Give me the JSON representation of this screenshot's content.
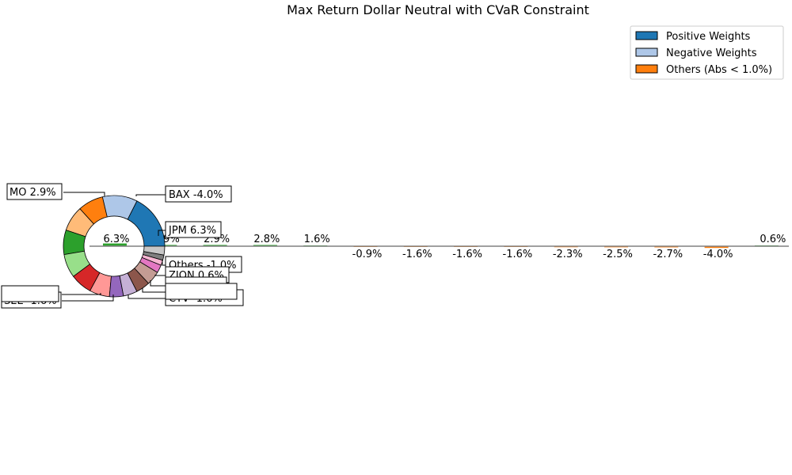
{
  "chart_data": {
    "type": "pie",
    "title": "Max Return Dollar Neutral with CVaR Constraint",
    "legend": {
      "placement": "top-right",
      "entries": [
        {
          "label": "Positive Weights",
          "color": "#1f77b4"
        },
        {
          "label": "Negative Weights",
          "color": "#aec7e8"
        },
        {
          "label": "Others (Abs < 1.0%)",
          "color": "#ff7f0e"
        }
      ]
    },
    "donut_slices": [
      {
        "label": "JPM",
        "value": 6.3,
        "color": "#1f77b4"
      },
      {
        "label": "BAX",
        "value": -4.0,
        "color": "#aec7e8"
      },
      {
        "label": "",
        "value": 2.9,
        "color": "#ff7f0e"
      },
      {
        "label": "MO",
        "value": 2.9,
        "color": "#ffbb78"
      },
      {
        "label": "",
        "value": 2.8,
        "color": "#2ca02c"
      },
      {
        "label": "",
        "value": 2.7,
        "color": "#98df8a"
      },
      {
        "label": "",
        "value": 2.5,
        "color": "#d62728"
      },
      {
        "label": "",
        "value": 2.3,
        "color": "#ff9896"
      },
      {
        "label": "",
        "value": 1.6,
        "color": "#9467bd"
      },
      {
        "label": "SEE",
        "value": -1.6,
        "color": "#c5b0d5"
      },
      {
        "label": "",
        "value": 1.6,
        "color": "#8c564b"
      },
      {
        "label": "",
        "value": 1.6,
        "color": "#c49c94"
      },
      {
        "label": "",
        "value": 0.9,
        "color": "#e377c2"
      },
      {
        "label": "ZION",
        "value": 0.6,
        "color": "#f7b6d2"
      },
      {
        "label": "",
        "value": 0.6,
        "color": "#7f7f7f"
      },
      {
        "label": "Others",
        "value": -1.0,
        "color": "#c7c7c7"
      }
    ],
    "callout_boxes": [
      "MO 2.9%",
      "BAX -4.0%",
      "JPM 6.3%",
      "Others -1.0%",
      "ZION 0.6%",
      "SEE -1.6%",
      "",
      "CTV -1.6%",
      "",
      ""
    ],
    "bar_labels": [
      "6.3%",
      "2.9%",
      "2.9%",
      "2.8%",
      "1.6%",
      "-0.9%",
      "-1.6%",
      "-1.6%",
      "-1.6%",
      "-2.3%",
      "-2.5%",
      "-2.7%",
      "-4.0%",
      "0.6%"
    ],
    "bar_values": [
      6.3,
      2.9,
      2.9,
      2.8,
      1.6,
      -0.9,
      -1.6,
      -1.6,
      -1.6,
      -2.3,
      -2.5,
      -2.7,
      -4.0,
      0.6
    ]
  }
}
